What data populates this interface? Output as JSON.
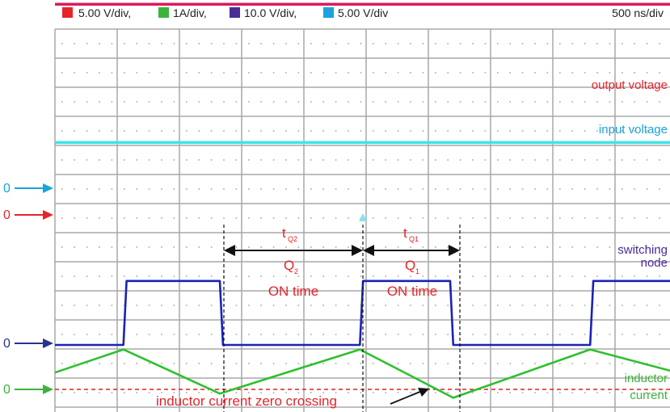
{
  "header": {
    "legend": [
      {
        "label": "5.00 V/div,",
        "color": "#e8232a"
      },
      {
        "label": "1A/div,",
        "color": "#3cb43c"
      },
      {
        "label": "10.0 V/div,",
        "color": "#4b2c96"
      },
      {
        "label": "5.00 V/div",
        "color": "#1aa3dc"
      }
    ],
    "timebase": "500 ns/div"
  },
  "colors": {
    "grid": "#a8a8a8",
    "output": "#d81b60",
    "input": "#3fe3e8",
    "switch": "#1a22b8",
    "inductor": "#2ec02e",
    "zero_line": "#e02020",
    "annotation": "#e8232a",
    "label_output": "#e8232a",
    "label_input": "#1aa3dc",
    "label_switch": "#4b2c96",
    "label_inductor": "#3cb43c"
  },
  "markers": [
    {
      "text": "0",
      "color": "#1aa3dc"
    },
    {
      "text": "0",
      "color": "#e8232a"
    },
    {
      "text": "0",
      "color": "#26358a"
    },
    {
      "text": "0",
      "color": "#3cb43c"
    }
  ],
  "annotations": {
    "t_q2": "t",
    "t_q2_sub": "Q2",
    "q2": "Q",
    "q2_sub": "2",
    "t_q1": "t",
    "t_q1_sub": "Q1",
    "q1": "Q",
    "q1_sub": "1",
    "on_time": "ON time",
    "zero_crossing": "inductor current zero crossing"
  },
  "chart_data": {
    "type": "line",
    "x_unit_per_div": "500 ns/div",
    "x_divisions": 10,
    "series": [
      {
        "name": "output voltage",
        "label_lines": [
          "output voltage"
        ],
        "scale": "5.00 V/div",
        "x": [
          0,
          10
        ],
        "y": [
          6.8,
          6.8
        ]
      },
      {
        "name": "input voltage",
        "label_lines": [
          "input voltage"
        ],
        "scale": "5.00 V/div",
        "x": [
          0,
          10
        ],
        "y": [
          5.3,
          5.3
        ]
      },
      {
        "name": "switching node",
        "label_lines": [
          "switching",
          "node"
        ],
        "scale": "10.0 V/div",
        "x": [
          0,
          1.1,
          1.15,
          2.65,
          2.7,
          4.9,
          4.95,
          6.35,
          6.4,
          8.6,
          8.65,
          10
        ],
        "y": [
          0,
          0,
          1.1,
          1.1,
          0,
          0,
          1.1,
          1.1,
          0,
          0,
          1.1,
          1.1
        ]
      },
      {
        "name": "inductor current",
        "label_lines": [
          "inductor",
          "current"
        ],
        "scale": "1A/div",
        "x": [
          0,
          1.1,
          2.65,
          4.9,
          6.4,
          8.6,
          10
        ],
        "y": [
          0.4,
          0.95,
          -0.1,
          0.95,
          -0.2,
          0.95,
          0.4
        ]
      }
    ],
    "grid": true
  }
}
